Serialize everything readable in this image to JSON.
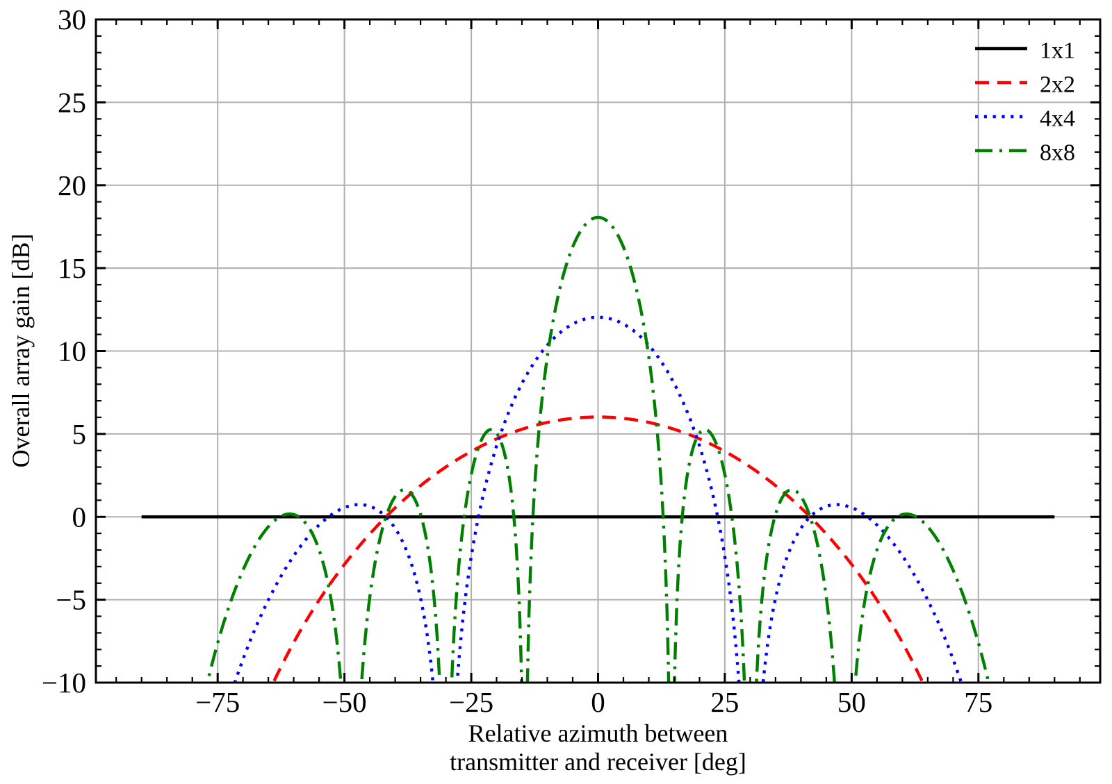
{
  "chart_data": {
    "type": "line",
    "title": "",
    "xlabel_lines": [
      "Relative azimuth between",
      "transmitter and receiver [deg]"
    ],
    "ylabel": "Overall array gain [dB]",
    "xlim": [
      -99,
      99
    ],
    "ylim": [
      -10,
      30
    ],
    "x_data_range_deg": [
      -90,
      90
    ],
    "x_major_ticks": [
      -75,
      -50,
      -25,
      0,
      25,
      50,
      75
    ],
    "x_tick_labels": [
      "−75",
      "−50",
      "−25",
      "0",
      "25",
      "50",
      "75"
    ],
    "x_minor_tick_step_deg": 5,
    "y_major_ticks": [
      30,
      25,
      20,
      15,
      10,
      5,
      0,
      -5,
      -10
    ],
    "y_tick_labels": [
      "30",
      "25",
      "20",
      "15",
      "10",
      "5",
      "0",
      "−5",
      "−10"
    ],
    "y_minor_tick_step_db": 1,
    "grid": "major-both",
    "grid_color": "#b0b0b0",
    "axes_color": "#000000",
    "background_color": "#ffffff",
    "tick_direction": "in",
    "model_formula": "gain_dB(az) = 20*log10(N) + 20*log10(|sin(N*(pi/2)*sin(az)) / (N*sin((pi/2)*sin(az)))|) for an NxN setup (N-element uniform array, half-wavelength spacing)",
    "series": [
      {
        "name": "1x1",
        "elements_n": 1,
        "color": "#000000",
        "linestyle": "solid",
        "peak_gain_db": 0.0,
        "constant_db": 0.0
      },
      {
        "name": "2x2",
        "elements_n": 2,
        "color": "#ff0000",
        "linestyle": "dashed",
        "peak_gain_db": 6.0,
        "peak_at_deg": 0,
        "zero_crossings_deg": [
          -41.8,
          41.8
        ],
        "crosses_minus10db_deg": [
          -64,
          64
        ]
      },
      {
        "name": "4x4",
        "elements_n": 4,
        "color": "#0000ff",
        "linestyle": "dotted",
        "peak_gain_db": 12.0,
        "peak_at_deg": 0,
        "nulls_deg": [
          -30,
          30
        ],
        "sidelobes": [
          {
            "deg": -47.6,
            "db": 0.7
          },
          {
            "deg": 47.6,
            "db": 0.7
          }
        ]
      },
      {
        "name": "8x8",
        "elements_n": 8,
        "color": "#008000",
        "linestyle": "dashdot",
        "peak_gain_db": 18.1,
        "peak_at_deg": 0,
        "nulls_deg": [
          -48.6,
          -30,
          -14.5,
          14.5,
          30,
          48.6
        ],
        "sidelobes": [
          {
            "deg": -61,
            "db": 0.1
          },
          {
            "deg": -38.7,
            "db": 1.7
          },
          {
            "deg": -22,
            "db": 5.3
          },
          {
            "deg": 22,
            "db": 5.3
          },
          {
            "deg": 38.7,
            "db": 1.7
          },
          {
            "deg": 61,
            "db": 0.1
          }
        ]
      }
    ],
    "legend": {
      "position": "upper-right",
      "frame": false,
      "entries": [
        {
          "label": "1x1",
          "color": "#000000",
          "linestyle": "solid"
        },
        {
          "label": "2x2",
          "color": "#ff0000",
          "linestyle": "dashed"
        },
        {
          "label": "4x4",
          "color": "#0000ff",
          "linestyle": "dotted"
        },
        {
          "label": "8x8",
          "color": "#008000",
          "linestyle": "dashdot"
        }
      ]
    }
  }
}
